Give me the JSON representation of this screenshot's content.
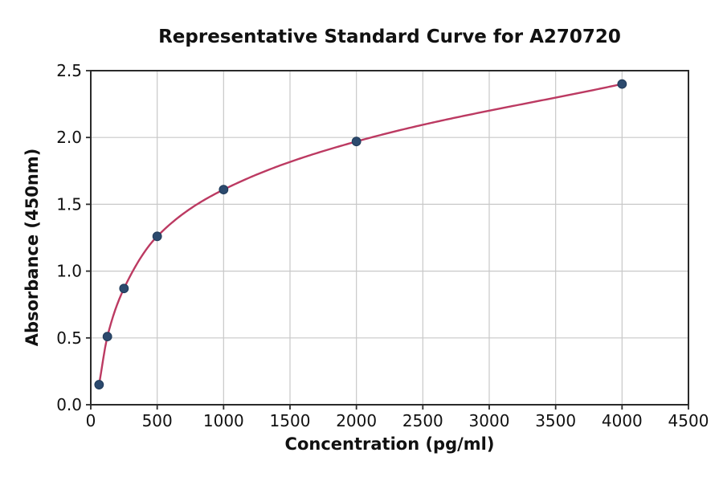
{
  "figure": {
    "title": "Representative Standard Curve for A270720",
    "xlabel": "Concentration (pg/ml)",
    "ylabel": "Absorbance (450nm)"
  },
  "chart_data": {
    "type": "scatter",
    "title": "Representative Standard Curve for A270720",
    "xlabel": "Concentration (pg/ml)",
    "ylabel": "Absorbance (450nm)",
    "xlim": [
      0,
      4500
    ],
    "ylim": [
      0,
      2.5
    ],
    "x_ticks": [
      0,
      500,
      1000,
      1500,
      2000,
      2500,
      3000,
      3500,
      4000,
      4500
    ],
    "y_tick_labels": [
      "0.0",
      "0.5",
      "1.0",
      "1.5",
      "2.0",
      "2.5"
    ],
    "grid": true,
    "legend_position": "none",
    "series": [
      {
        "name": "standard-points",
        "type": "scatter",
        "color": "#2c4a6e",
        "x": [
          62.5,
          125,
          250,
          500,
          1000,
          2000,
          4000
        ],
        "y": [
          0.15,
          0.51,
          0.87,
          1.26,
          1.61,
          1.97,
          2.4
        ]
      },
      {
        "name": "fitted-curve",
        "type": "line",
        "color": "#bc3a62",
        "x_start": 62.5,
        "x_end": 4000
      }
    ],
    "colors": {
      "grid": "#c8c8c8",
      "axis": "#2a2a2a",
      "text": "#111111",
      "background": "#ffffff"
    }
  }
}
